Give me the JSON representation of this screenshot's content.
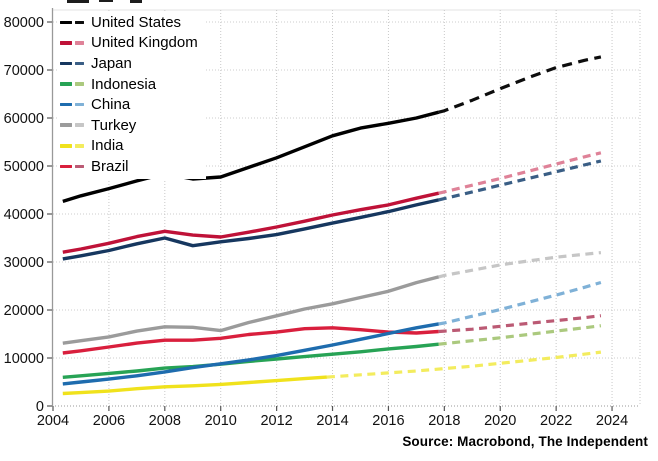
{
  "chart_data": {
    "type": "line",
    "title": "",
    "xlabel": "",
    "ylabel": "",
    "x_range": [
      2004,
      2025
    ],
    "y_range": [
      0,
      80000
    ],
    "x_ticks": [
      2004,
      2006,
      2008,
      2010,
      2012,
      2014,
      2016,
      2018,
      2020,
      2022,
      2024
    ],
    "y_ticks": [
      0,
      10000,
      20000,
      30000,
      40000,
      50000,
      60000,
      70000,
      80000
    ],
    "grid": true,
    "legend_position": "top-left",
    "note": "solid = historical, dashed = forecast",
    "years": [
      2004,
      2005,
      2006,
      2007,
      2008,
      2009,
      2010,
      2011,
      2012,
      2013,
      2014,
      2015,
      2016,
      2017,
      2018,
      2019,
      2020,
      2021,
      2022,
      2023,
      2024
    ],
    "series": [
      {
        "name": "United States",
        "color": "#000000",
        "dash_color": "#0d0d0d",
        "forecast_from": 2018,
        "values": [
          42000,
          43800,
          45300,
          46900,
          48400,
          47300,
          47700,
          49700,
          51700,
          54000,
          56300,
          57900,
          58900,
          60000,
          61500,
          63700,
          66100,
          68400,
          70500,
          72000,
          73200
        ]
      },
      {
        "name": "United Kingdom",
        "color": "#bf1238",
        "dash_color": "#df8298",
        "forecast_from": 2018,
        "values": [
          31700,
          32700,
          33900,
          35300,
          36400,
          35600,
          35200,
          36200,
          37300,
          38500,
          39800,
          40900,
          41900,
          43300,
          44600,
          46000,
          47400,
          48900,
          50400,
          51900,
          53300
        ]
      },
      {
        "name": "Japan",
        "color": "#16375f",
        "dash_color": "#3a5e85",
        "forecast_from": 2018,
        "values": [
          30300,
          31300,
          32400,
          33800,
          35000,
          33400,
          34200,
          34900,
          35700,
          36900,
          38100,
          39300,
          40500,
          41900,
          43200,
          44600,
          46000,
          47400,
          48800,
          50200,
          51600
        ]
      },
      {
        "name": "Indonesia",
        "color": "#27a355",
        "dash_color": "#abc97e",
        "forecast_from": 2018,
        "values": [
          5800,
          6300,
          6800,
          7300,
          7900,
          8200,
          8700,
          9300,
          9800,
          10300,
          10800,
          11300,
          11900,
          12400,
          13000,
          13600,
          14200,
          14900,
          15600,
          16300,
          17000
        ]
      },
      {
        "name": "China",
        "color": "#1e6cae",
        "dash_color": "#7fb1d7",
        "forecast_from": 2018,
        "values": [
          4400,
          5000,
          5600,
          6300,
          7100,
          8000,
          8800,
          9600,
          10500,
          11600,
          12700,
          13900,
          15100,
          16300,
          17300,
          18700,
          20100,
          21600,
          23100,
          24700,
          26400
        ]
      },
      {
        "name": "Turkey",
        "color": "#9b9b9b",
        "dash_color": "#c6c6c6",
        "forecast_from": 2018,
        "values": [
          12800,
          13600,
          14400,
          15600,
          16500,
          16400,
          15700,
          17400,
          18800,
          20200,
          21300,
          22600,
          23900,
          25700,
          27200,
          28300,
          29400,
          30200,
          31000,
          31600,
          32200
        ]
      },
      {
        "name": "India",
        "color": "#f0e21c",
        "dash_color": "#f3ec5e",
        "forecast_from": 2014,
        "values": [
          2500,
          2800,
          3100,
          3600,
          4000,
          4200,
          4500,
          4900,
          5300,
          5700,
          6100,
          6500,
          6900,
          7300,
          7800,
          8300,
          8900,
          9500,
          10100,
          10800,
          11500
        ]
      },
      {
        "name": "Brazil",
        "color": "#d91f3d",
        "dash_color": "#bb5a74",
        "forecast_from": 2018,
        "values": [
          10800,
          11500,
          12300,
          13100,
          13700,
          13700,
          14100,
          14900,
          15400,
          16100,
          16300,
          15900,
          15400,
          15200,
          15600,
          16000,
          16600,
          17200,
          17800,
          18400,
          19100
        ]
      }
    ],
    "draw_order": [
      "Turkey",
      "India",
      "Brazil",
      "Indonesia",
      "China",
      "Japan",
      "United Kingdom",
      "United States"
    ],
    "source": "Source: Macrobond, The Independent"
  }
}
